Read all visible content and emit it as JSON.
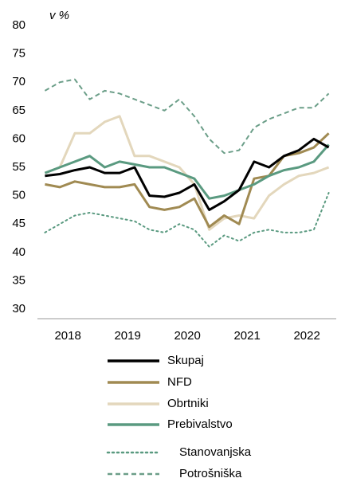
{
  "chart_data": {
    "type": "line",
    "y_label": "v %",
    "categories": [
      null,
      "2018",
      null,
      null,
      null,
      "2019",
      null,
      null,
      null,
      "2020",
      null,
      null,
      null,
      "2021",
      null,
      null,
      null,
      "2022",
      null,
      null
    ],
    "ylim": [
      30,
      80
    ],
    "yticks": [
      30,
      35,
      40,
      45,
      50,
      55,
      60,
      65,
      70,
      75,
      80
    ],
    "legend": "bottom",
    "series": [
      {
        "name": "Skupaj",
        "color": "#000000",
        "dash": "solid",
        "values": [
          53.5,
          53.8,
          54.5,
          55,
          54,
          54,
          55,
          50,
          49.8,
          50.5,
          52,
          47.5,
          49,
          51,
          56,
          55,
          57,
          58,
          60,
          58.5
        ]
      },
      {
        "name": "NFD",
        "color": "#a08a52",
        "dash": "solid",
        "values": [
          52,
          51.5,
          52.5,
          52,
          51.5,
          51.5,
          52,
          48,
          47.5,
          48,
          49.5,
          44.5,
          46.5,
          45,
          53,
          53.5,
          57,
          57.5,
          58.5,
          61
        ]
      },
      {
        "name": "Obrtniki",
        "color": "#e3d7bc",
        "dash": "solid",
        "values": [
          54,
          55,
          61,
          61,
          63,
          64,
          57,
          57,
          56,
          55,
          52,
          44,
          46,
          46.5,
          46,
          50,
          52,
          53.5,
          54,
          55
        ]
      },
      {
        "name": "Prebivalstvo",
        "color": "#5a9a80",
        "dash": "solid",
        "values": [
          54,
          55,
          56,
          57,
          55,
          56,
          55.5,
          55,
          55,
          54,
          53,
          49.5,
          50,
          51,
          52,
          53.5,
          54.5,
          55,
          56,
          59
        ]
      },
      {
        "name": "Stanovanjska",
        "color": "#5a9a80",
        "dash": "dotted",
        "values": [
          43.5,
          45,
          46.5,
          47,
          46.5,
          46,
          45.5,
          44,
          43.5,
          45,
          44,
          41,
          43,
          42,
          43.5,
          44,
          43.5,
          43.5,
          44,
          50.5
        ]
      },
      {
        "name": "Potrošniška",
        "color": "#6b9e88",
        "dash": "dashed",
        "values": [
          68.5,
          70,
          70.5,
          67,
          68.5,
          68,
          67,
          66,
          65,
          67,
          64,
          60,
          57.5,
          58,
          62,
          63.5,
          64.5,
          65.5,
          65.5,
          68
        ]
      }
    ]
  }
}
